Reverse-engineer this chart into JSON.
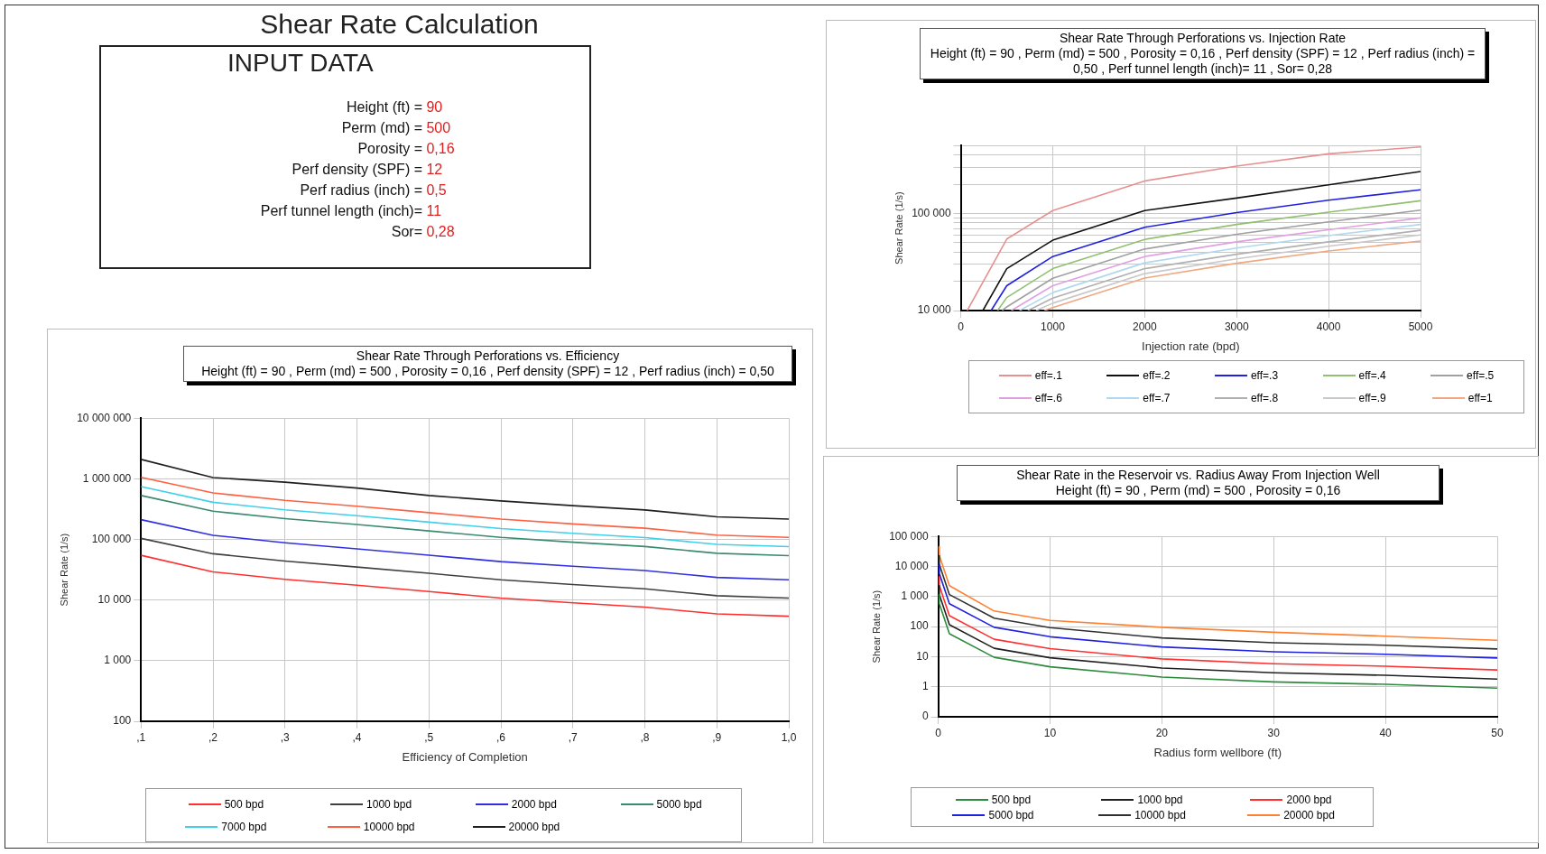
{
  "chart_data": [
    {
      "type": "other",
      "title": "Shear Rate Calculation",
      "subtitle": "INPUT DATA",
      "annotations": [
        "Height (ft) = 90",
        "Perm (md) = 500",
        "Porosity = 0,16",
        "Perf density (SPF) = 12",
        "Perf radius (inch) = 0,5",
        "Perf tunnel length (inch)= 11",
        "Sor= 0,28"
      ]
    },
    {
      "type": "line",
      "title": "Shear Rate Through Perforations vs. Injection Rate",
      "subtitle": "Height (ft) = 90 ,  Perm (md) = 500 , Porosity = 0,16 , Perf density (SPF) = 12 , Perf radius (inch) = 0,50 , Perf tunnel length (inch)= 11 , Sor= 0,28",
      "xlabel": "Injection rate (bpd)",
      "ylabel": "Shear Rate (1/s)",
      "log": "y",
      "grid": true,
      "legend": "bottom",
      "marker": "none",
      "line_style": "solid",
      "xlim": [
        0,
        5000
      ],
      "xticks": [
        0,
        1000,
        2000,
        3000,
        4000,
        5000
      ],
      "ylim": [
        10000,
        500000
      ],
      "yticks": [
        {
          "value": 10000,
          "label": "10 000"
        },
        {
          "value": 20000,
          "label": null
        },
        {
          "value": 30000,
          "label": null
        },
        {
          "value": 40000,
          "label": null
        },
        {
          "value": 50000,
          "label": null
        },
        {
          "value": 60000,
          "label": null
        },
        {
          "value": 70000,
          "label": null
        },
        {
          "value": 80000,
          "label": null
        },
        {
          "value": 90000,
          "label": null
        },
        {
          "value": 100000,
          "label": "100 000"
        },
        {
          "value": 200000,
          "label": null
        },
        {
          "value": 300000,
          "label": null
        },
        {
          "value": 400000,
          "label": null
        },
        {
          "value": 500000,
          "label": null
        }
      ],
      "series": [
        {
          "name": "eff=.1",
          "color": "#e89090",
          "x": [
            70,
            500,
            1000,
            2000,
            3000,
            4000,
            5000
          ],
          "values": [
            10000,
            54500,
            107000,
            216000,
            307000,
            411000,
            484000
          ]
        },
        {
          "name": "eff=.2",
          "color": "#101010",
          "x": [
            240,
            500,
            1000,
            2000,
            3000,
            4000,
            5000
          ],
          "values": [
            10000,
            27000,
            53000,
            107000,
            144000,
            197000,
            270000
          ]
        },
        {
          "name": "eff=.3",
          "color": "#2020e0",
          "x": [
            330,
            500,
            1000,
            2000,
            3000,
            4000,
            5000
          ],
          "values": [
            10000,
            18000,
            36000,
            72000,
            102000,
            137000,
            175000
          ]
        },
        {
          "name": "eff=.4",
          "color": "#90c070",
          "x": [
            400,
            500,
            1000,
            2000,
            3000,
            4000,
            5000
          ],
          "values": [
            10000,
            13600,
            27000,
            54000,
            77000,
            103000,
            135000
          ]
        },
        {
          "name": "eff=.5",
          "color": "#a0a0a0",
          "x": [
            450,
            500,
            1000,
            2000,
            3000,
            4000,
            5000
          ],
          "values": [
            10000,
            10900,
            21500,
            43000,
            61000,
            82000,
            108000
          ]
        },
        {
          "name": "eff=.6",
          "color": "#e0a0e0",
          "x": [
            550,
            1000,
            2000,
            3000,
            4000,
            5000
          ],
          "values": [
            10000,
            18000,
            36000,
            51000,
            68000,
            90000
          ]
        },
        {
          "name": "eff=.7",
          "color": "#b0d8f0",
          "x": [
            640,
            1000,
            2000,
            3000,
            4000,
            5000
          ],
          "values": [
            10000,
            15300,
            31000,
            44000,
            59000,
            77000
          ]
        },
        {
          "name": "eff=.8",
          "color": "#b0b0b0",
          "x": [
            730,
            1000,
            2000,
            3000,
            4000,
            5000
          ],
          "values": [
            10000,
            13400,
            27000,
            38000,
            51000,
            67000
          ]
        },
        {
          "name": "eff=.9",
          "color": "#c8c8c8",
          "x": [
            820,
            1000,
            2000,
            3000,
            4000,
            5000
          ],
          "values": [
            10000,
            11900,
            24000,
            34000,
            46000,
            60000
          ]
        },
        {
          "name": "eff=1",
          "color": "#f0a880",
          "x": [
            910,
            1000,
            2000,
            3000,
            4000,
            5000
          ],
          "values": [
            10000,
            10700,
            21600,
            30700,
            41000,
            52000
          ]
        }
      ]
    },
    {
      "type": "line",
      "title": "Shear Rate Through Perforations vs. Efficiency",
      "subtitle": "Height (ft) = 90 ,  Perm (md) = 500 , Porosity = 0,16 , Perf density (SPF) = 12 , Perf radius (inch) = 0,50",
      "xlabel": "Efficiency of Completion",
      "ylabel": "Shear Rate (1/s)",
      "log": "y",
      "grid": true,
      "legend": "bottom",
      "marker": "none",
      "line_style": "solid",
      "categories": [
        ",1",
        ",2",
        ",3",
        ",4",
        ",5",
        ",6",
        ",7",
        ",8",
        ",9",
        "1,0"
      ],
      "ylim": [
        100,
        10000000
      ],
      "yticks": [
        {
          "value": 100,
          "label": "100"
        },
        {
          "value": 1000,
          "label": "1 000"
        },
        {
          "value": 10000,
          "label": "10 000"
        },
        {
          "value": 100000,
          "label": "100 000"
        },
        {
          "value": 1000000,
          "label": "1 000 000"
        },
        {
          "value": 10000000,
          "label": "10 000 000"
        }
      ],
      "series": [
        {
          "name": "500 bpd",
          "color": "#ff3030",
          "values": [
            54700,
            29200,
            22000,
            17600,
            13800,
            10800,
            9000,
            7650,
            5900,
            5400
          ]
        },
        {
          "name": "1000 bpd",
          "color": "#404040",
          "values": [
            104000,
            58000,
            44000,
            35000,
            27600,
            21600,
            18000,
            15300,
            11800,
            10800
          ]
        },
        {
          "name": "2000 bpd",
          "color": "#3030e0",
          "values": [
            212000,
            117000,
            88000,
            70000,
            55000,
            43000,
            36000,
            30600,
            23600,
            21600
          ]
        },
        {
          "name": "5000 bpd",
          "color": "#3a8a70",
          "values": [
            530000,
            292000,
            220000,
            176000,
            138000,
            108000,
            90000,
            76500,
            59000,
            54000
          ]
        },
        {
          "name": "7000 bpd",
          "color": "#40d0e8",
          "values": [
            746000,
            410000,
            308000,
            246000,
            193000,
            151000,
            126000,
            107000,
            83000,
            76000
          ]
        },
        {
          "name": "10000 bpd",
          "color": "#ff6040",
          "values": [
            1054000,
            585000,
            440000,
            352000,
            276000,
            216000,
            180000,
            153000,
            118000,
            108000
          ]
        },
        {
          "name": "20000 bpd",
          "color": "#202020",
          "values": [
            2090000,
            1050000,
            880000,
            704000,
            530000,
            432000,
            360000,
            306000,
            236000,
            216000
          ]
        }
      ]
    },
    {
      "type": "line",
      "title": "Shear Rate in the Reservoir vs. Radius Away From Injection Well",
      "subtitle": "Height (ft) = 90 ,  Perm (md) = 500 , Porosity = 0,16",
      "xlabel": "Radius form wellbore (ft)",
      "ylabel": "Shear Rate (1/s)",
      "log": "y",
      "grid": true,
      "legend": "bottom",
      "marker": "none",
      "line_style": "solid",
      "x": [
        0.05,
        0.1,
        1,
        5,
        10,
        20,
        30,
        40,
        50
      ],
      "xlim": [
        0,
        50
      ],
      "xticks": [
        0,
        10,
        20,
        30,
        40,
        50
      ],
      "ylim": [
        0.1,
        100000
      ],
      "yticks": [
        {
          "value": 0.1,
          "label": "0"
        },
        1,
        10,
        100,
        {
          "value": 1000,
          "label": "1 000"
        },
        {
          "value": 10000,
          "label": "10 000"
        },
        {
          "value": 100000,
          "label": "100 000"
        }
      ],
      "series": [
        {
          "name": "500 bpd",
          "color": "#2e8b3e",
          "values": [
            1160,
            580,
            58,
            9.5,
            4.6,
            2.1,
            1.45,
            1.2,
            0.9
          ]
        },
        {
          "name": "1000 bpd",
          "color": "#202020",
          "values": [
            2300,
            1160,
            116,
            19,
            9.2,
            4.2,
            2.9,
            2.4,
            1.8
          ]
        },
        {
          "name": "2000 bpd",
          "color": "#ff3030",
          "values": [
            4600,
            2300,
            230,
            38,
            18.5,
            8.4,
            5.8,
            4.8,
            3.6
          ]
        },
        {
          "name": "5000 bpd",
          "color": "#2020e0",
          "values": [
            11600,
            5800,
            580,
            95,
            46,
            21,
            14.5,
            12,
            9
          ]
        },
        {
          "name": "10000 bpd",
          "color": "#303030",
          "values": [
            23000,
            11600,
            1160,
            190,
            92,
            42,
            29,
            24,
            18
          ]
        },
        {
          "name": "20000 bpd",
          "color": "#ff8030",
          "values": [
            46000,
            23000,
            2300,
            330,
            160,
            95,
            65,
            48,
            35
          ]
        }
      ]
    }
  ]
}
